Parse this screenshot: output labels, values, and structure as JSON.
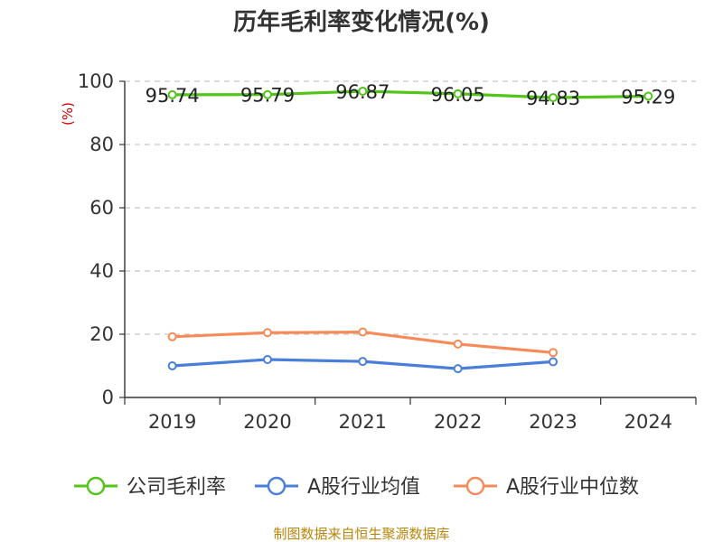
{
  "chart_data": {
    "type": "line",
    "title": "历年毛利率变化情况(%)",
    "ylabel": "(%)",
    "categories": [
      "2019",
      "2020",
      "2021",
      "2022",
      "2023",
      "2024"
    ],
    "ylim": [
      0,
      100
    ],
    "yticks": [
      "0",
      "20",
      "40",
      "60",
      "80",
      "100"
    ],
    "grid": true,
    "legend_position": "bottom",
    "series": [
      {
        "name": "公司毛利率",
        "color": "#52c41a",
        "values": [
          95.74,
          95.79,
          96.87,
          96.05,
          94.83,
          95.29
        ],
        "labels": [
          "95.74",
          "95.79",
          "96.87",
          "96.05",
          "94.83",
          "95.29"
        ]
      },
      {
        "name": "A股行业均值",
        "color": "#4a7fd9",
        "values": [
          10.0,
          12.0,
          11.4,
          9.1,
          11.3,
          null
        ]
      },
      {
        "name": "A股行业中位数",
        "color": "#f68b5a",
        "values": [
          19.2,
          20.5,
          20.7,
          16.9,
          14.2,
          null
        ]
      }
    ]
  },
  "source": "制图数据来自恒生聚源数据库"
}
